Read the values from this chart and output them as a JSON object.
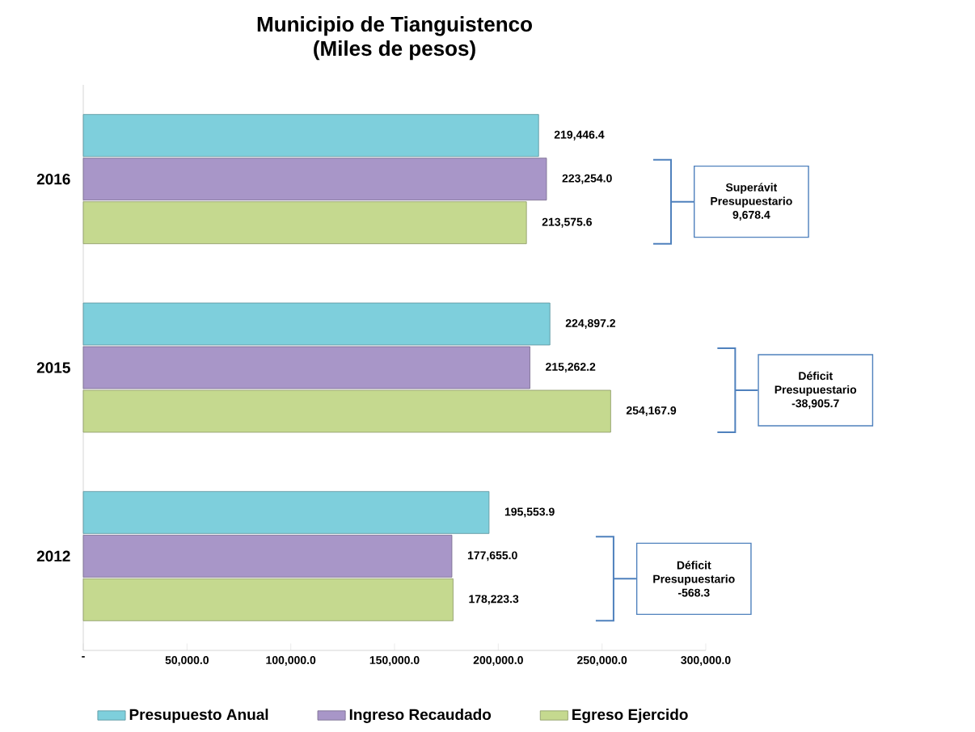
{
  "chart_data": {
    "type": "bar",
    "orientation": "horizontal",
    "title": "Municipio de Tianguistenco",
    "subtitle": "(Miles de pesos)",
    "categories": [
      "2016",
      "2015",
      "2012"
    ],
    "series": [
      {
        "name": "Presupuesto Anual",
        "color": "#7ecfdc",
        "values": [
          219446.4,
          224897.2,
          195553.9
        ],
        "value_labels": [
          "219,446.4",
          "224,897.2",
          "195,553.9"
        ]
      },
      {
        "name": "Ingreso Recaudado",
        "color": "#a896c8",
        "values": [
          223254.0,
          215262.2,
          177655.0
        ],
        "value_labels": [
          "223,254.0",
          "215,262.2",
          "177,655.0"
        ]
      },
      {
        "name": "Egreso Ejercido",
        "color": "#c5d98f",
        "values": [
          213575.6,
          254167.9,
          178223.3
        ],
        "value_labels": [
          "213,575.6",
          "254,167.9",
          "178,223.3"
        ]
      }
    ],
    "xlim": [
      0,
      300000
    ],
    "xticks": [
      {
        "value": 0,
        "label": "-"
      },
      {
        "value": 50000,
        "label": "50,000.0"
      },
      {
        "value": 100000,
        "label": "100,000.0"
      },
      {
        "value": 150000,
        "label": "150,000.0"
      },
      {
        "value": 200000,
        "label": "200,000.0"
      },
      {
        "value": 250000,
        "label": "250,000.0"
      },
      {
        "value": 300000,
        "label": "300,000.0"
      }
    ],
    "annotations": [
      "Superávit Presupuestario 9,678.4",
      "Déficit Presupuestario -38,905.7",
      "Déficit Presupuestario -568.3"
    ],
    "grid": false,
    "legend": "bottom"
  }
}
